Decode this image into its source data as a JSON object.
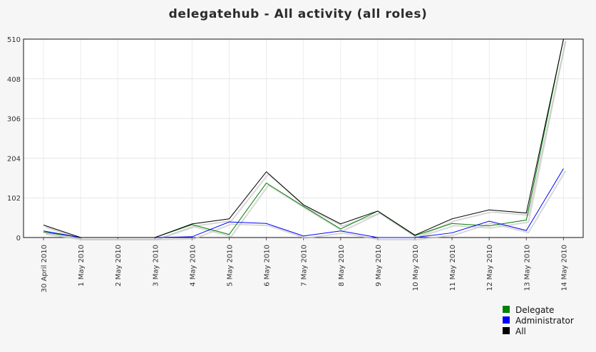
{
  "chart_data": {
    "type": "line",
    "title": "delegatehub - All activity (all roles)",
    "xlabel": "",
    "ylabel": "",
    "categories": [
      "30 April 2010",
      "1 May 2010",
      "2 May 2010",
      "3 May 2010",
      "4 May 2010",
      "5 May 2010",
      "6 May 2010",
      "7 May 2010",
      "8 May 2010",
      "9 May 2010",
      "10 May 2010",
      "11 May 2010",
      "12 May 2010",
      "13 May 2010",
      "14 May 2010"
    ],
    "series": [
      {
        "name": "Delegate",
        "color": "#008000",
        "values": [
          14,
          0,
          0,
          0,
          33,
          8,
          140,
          80,
          22,
          68,
          5,
          36,
          30,
          45,
          510
        ]
      },
      {
        "name": "Administrator",
        "color": "#0000ff",
        "values": [
          17,
          0,
          0,
          0,
          2,
          40,
          36,
          4,
          17,
          0,
          0,
          12,
          42,
          18,
          177
        ]
      },
      {
        "name": "All",
        "color": "#000000",
        "values": [
          32,
          0,
          0,
          0,
          35,
          48,
          169,
          84,
          35,
          68,
          6,
          48,
          71,
          63,
          510
        ]
      }
    ],
    "yticks": [
      "0",
      "102",
      "204",
      "306",
      "408",
      "510"
    ],
    "ylim": [
      0,
      510
    ],
    "grid": true,
    "legend_position": "bottom-right"
  }
}
